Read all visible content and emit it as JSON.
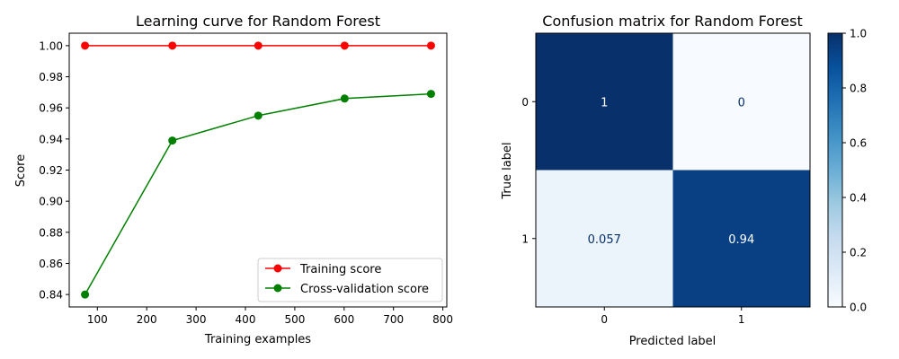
{
  "chart_data": [
    {
      "type": "line",
      "title": "Learning curve for Random Forest",
      "xlabel": "Training examples",
      "ylabel": "Score",
      "xlim": [
        43,
        808
      ],
      "ylim": [
        0.832,
        1.008
      ],
      "x_ticks": [
        100,
        200,
        300,
        400,
        500,
        600,
        700,
        800
      ],
      "y_ticks": [
        0.84,
        0.86,
        0.88,
        0.9,
        0.92,
        0.94,
        0.96,
        0.98,
        1.0
      ],
      "x": [
        75,
        252,
        426,
        601,
        776
      ],
      "series": [
        {
          "name": "Training score",
          "color": "#ff0000",
          "values": [
            1.0,
            1.0,
            1.0,
            1.0,
            1.0
          ]
        },
        {
          "name": "Cross-validation score",
          "color": "#008000",
          "values": [
            0.84,
            0.939,
            0.955,
            0.966,
            0.969
          ]
        }
      ],
      "legend": "lower-right",
      "grid": false
    },
    {
      "type": "heatmap",
      "title": "Confusion matrix for Random Forest",
      "xlabel": "Predicted label",
      "ylabel": "True label",
      "x_categories": [
        "0",
        "1"
      ],
      "y_categories": [
        "0",
        "1"
      ],
      "values": [
        [
          1,
          0
        ],
        [
          0.057,
          0.94
        ]
      ],
      "labels": [
        [
          "1",
          "0"
        ],
        [
          "0.057",
          "0.94"
        ]
      ],
      "colormap": "Blues",
      "colorbar": {
        "min": 0.0,
        "max": 1.0,
        "ticks": [
          "0.0",
          "0.2",
          "0.4",
          "0.6",
          "0.8",
          "1.0"
        ]
      }
    }
  ]
}
